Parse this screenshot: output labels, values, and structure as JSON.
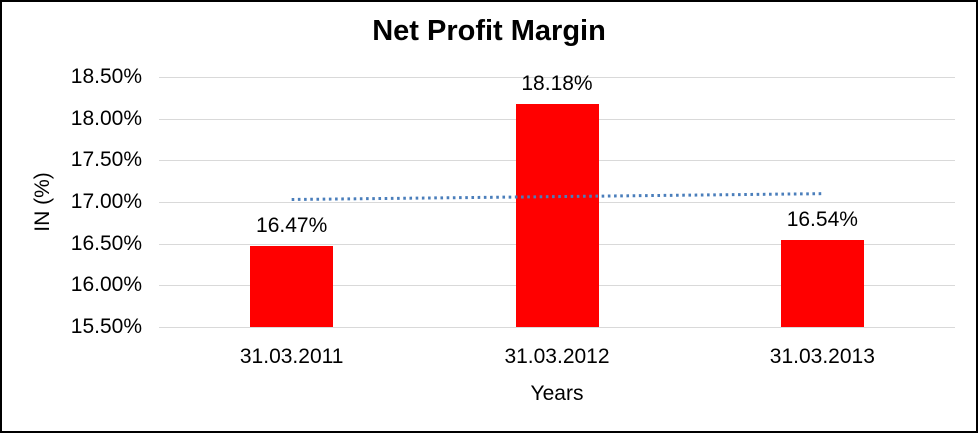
{
  "chart_data": {
    "type": "bar",
    "title": "Net Profit Margin",
    "xlabel": "Years",
    "ylabel": "IN (%)",
    "categories": [
      "31.03.2011",
      "31.03.2012",
      "31.03.2013"
    ],
    "values": [
      16.47,
      18.18,
      16.54
    ],
    "data_labels": [
      "16.47%",
      "18.18%",
      "16.54%"
    ],
    "ylim": [
      15.5,
      18.5
    ],
    "ytick_step": 0.5,
    "ytick_labels": [
      "18.50%",
      "18.00%",
      "17.50%",
      "17.00%",
      "16.50%",
      "16.00%",
      "15.50%"
    ],
    "grid": true,
    "legend_position": "none",
    "bar_color": "#ff0000",
    "trendline": {
      "type": "linear",
      "style": "dotted",
      "color": "#4a7ebb",
      "start_value": 17.03,
      "end_value": 17.1
    }
  },
  "colors": {
    "background": "#ffffff",
    "border": "#000000",
    "gridline": "#d9d9d9",
    "text": "#000000"
  }
}
